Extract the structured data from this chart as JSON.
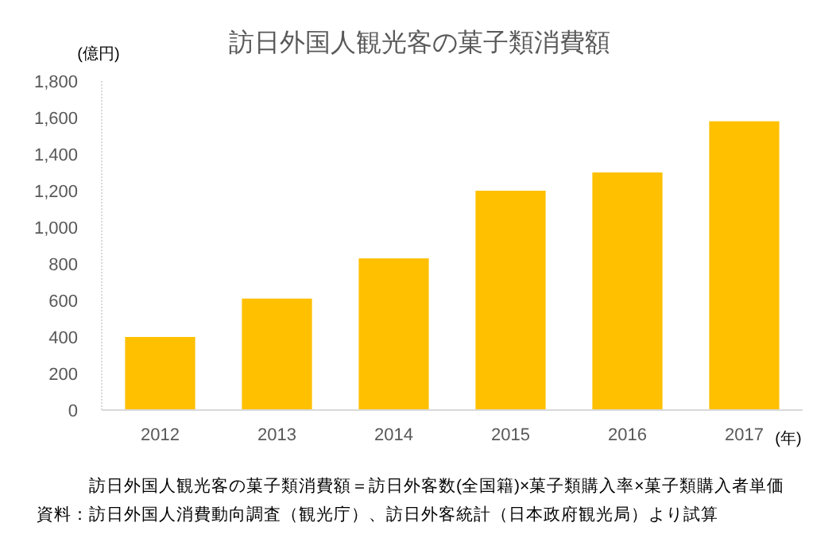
{
  "chart_data": {
    "type": "bar",
    "title": "訪日外国人観光客の菓子類消費額",
    "ylabel": "(億円)",
    "xlabel": "(年)",
    "categories": [
      "2012",
      "2013",
      "2014",
      "2015",
      "2016",
      "2017"
    ],
    "values": [
      400,
      610,
      830,
      1200,
      1300,
      1580
    ],
    "color": "#ffc000",
    "ylim": [
      0,
      1800
    ],
    "yticks": [
      {
        "value": 0,
        "label": "0"
      },
      {
        "value": 200,
        "label": "200"
      },
      {
        "value": 400,
        "label": "400"
      },
      {
        "value": 600,
        "label": "600"
      },
      {
        "value": 800,
        "label": "800"
      },
      {
        "value": 1000,
        "label": "1,000"
      },
      {
        "value": 1200,
        "label": "1,200"
      },
      {
        "value": 1400,
        "label": "1,400"
      },
      {
        "value": 1600,
        "label": "1,600"
      },
      {
        "value": 1800,
        "label": "1,800"
      }
    ],
    "grid": false,
    "annotations": [
      "訪日外国人観光客の菓子類消費額＝訪日外客数(全国籍)×菓子類購入率×菓子類購入者単価",
      "資料：訪日外国人消費動向調査（観光庁）、訪日外客統計（日本政府観光局）より試算"
    ]
  }
}
